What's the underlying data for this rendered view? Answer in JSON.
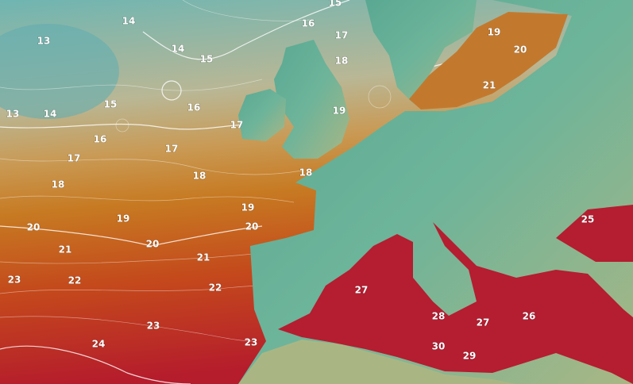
{
  "map": {
    "contour_labels": [
      13,
      14,
      15,
      16,
      17,
      19,
      20,
      18,
      14,
      15,
      13,
      14,
      15,
      16,
      21,
      19,
      17,
      16,
      17,
      17,
      18,
      18,
      18,
      19,
      19,
      20,
      20,
      20,
      25,
      21,
      21,
      23,
      22,
      27,
      22,
      23,
      28,
      27,
      26,
      23,
      24,
      30,
      29
    ]
  }
}
